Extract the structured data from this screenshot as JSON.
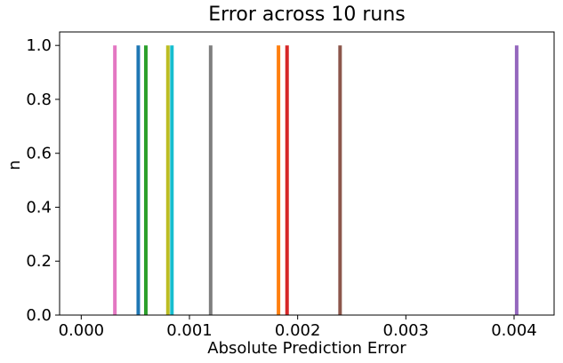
{
  "chart_data": {
    "type": "bar",
    "title": "Error across 10 runs",
    "xlabel": "Absolute Prediction Error",
    "ylabel": "n",
    "xlim": [
      -0.0002,
      0.00437
    ],
    "ylim": [
      0,
      1.05
    ],
    "xticks": [
      {
        "value": 0.0,
        "label": "0.000"
      },
      {
        "value": 0.001,
        "label": "0.001"
      },
      {
        "value": 0.002,
        "label": "0.002"
      },
      {
        "value": 0.003,
        "label": "0.003"
      },
      {
        "value": 0.004,
        "label": "0.004"
      }
    ],
    "yticks": [
      {
        "value": 0.0,
        "label": "0.0"
      },
      {
        "value": 0.2,
        "label": "0.2"
      },
      {
        "value": 0.4,
        "label": "0.4"
      },
      {
        "value": 0.6,
        "label": "0.6"
      },
      {
        "value": 0.8,
        "label": "0.8"
      },
      {
        "value": 1.0,
        "label": "1.0"
      }
    ],
    "grid": false,
    "bar_width": 2e-05,
    "series": [
      {
        "x": 0.000527,
        "count": 1,
        "color": "#1f77b4"
      },
      {
        "x": 0.001823,
        "count": 1,
        "color": "#ff7f0e"
      },
      {
        "x": 0.000597,
        "count": 1,
        "color": "#2ca02c"
      },
      {
        "x": 0.001902,
        "count": 1,
        "color": "#d62728"
      },
      {
        "x": 0.004024,
        "count": 1,
        "color": "#9467bd"
      },
      {
        "x": 0.002392,
        "count": 1,
        "color": "#8c564b"
      },
      {
        "x": 0.000311,
        "count": 1,
        "color": "#e377c2"
      },
      {
        "x": 0.001196,
        "count": 1,
        "color": "#7f7f7f"
      },
      {
        "x": 0.000801,
        "count": 1,
        "color": "#bcbd22"
      },
      {
        "x": 0.000838,
        "count": 1,
        "color": "#17becf"
      }
    ]
  }
}
